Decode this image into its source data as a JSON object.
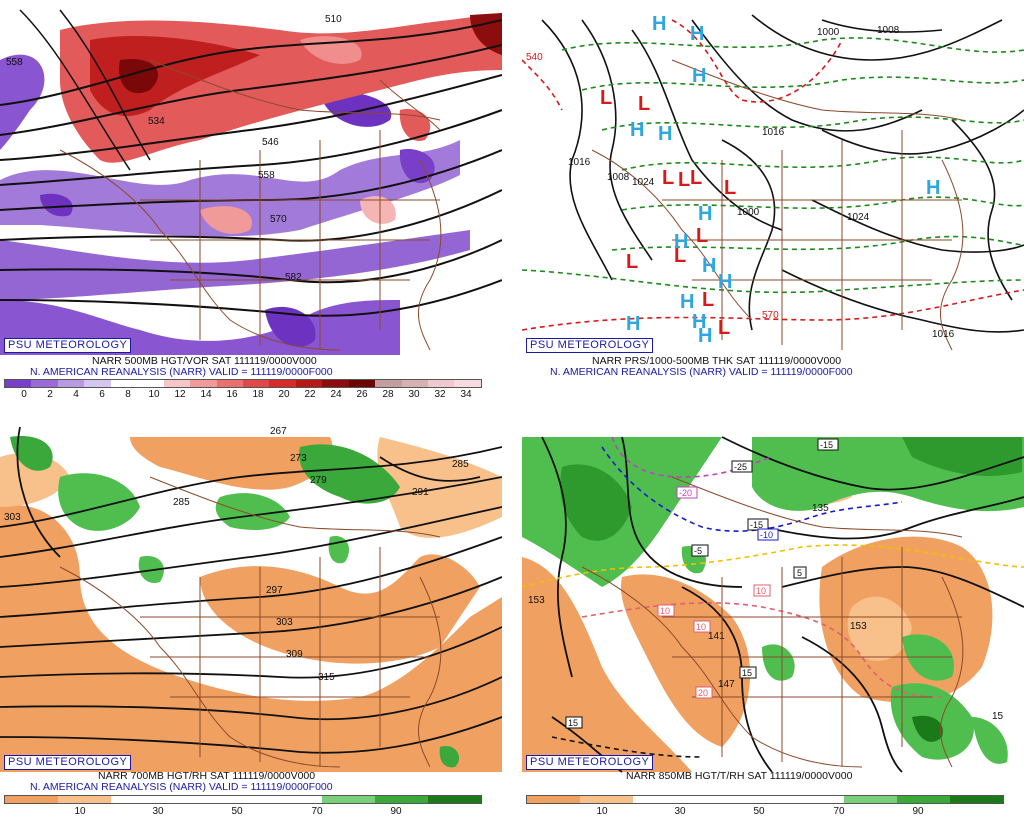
{
  "panels": {
    "p1": {
      "badge": "PSU METEOROLOGY",
      "caption1": "NARR 500MB HGT/VOR SAT 111119/0000V000",
      "caption2": "N. AMERICAN REANALYSIS (NARR) VALID = 111119/0000F000",
      "contour_labels": [
        "510",
        "558",
        "534",
        "546",
        "558",
        "570",
        "582"
      ],
      "colorbar_ticks": [
        "0",
        "2",
        "4",
        "6",
        "8",
        "10",
        "12",
        "14",
        "16",
        "18",
        "20",
        "22",
        "24",
        "26",
        "28",
        "30",
        "32",
        "34"
      ],
      "colors": [
        "#7a3fc9",
        "#9a6ad6",
        "#b89ae0",
        "#d4c6ee",
        "#ffffff",
        "#ffffff",
        "#f7c6c6",
        "#f29a9a",
        "#ec6f6f",
        "#e34848",
        "#d62b2b",
        "#b81818",
        "#8c0d0d",
        "#6a0606",
        "#c2a0a0",
        "#d9b0b0",
        "#efc9cf",
        "#f7dbe0"
      ]
    },
    "p2": {
      "badge": "PSU METEOROLOGY",
      "caption1": "NARR PRS/1000-500MB THK SAT 111119/0000V000",
      "caption2": "N. AMERICAN REANALYSIS (NARR) VALID = 111119/0000F000",
      "pressure_labels": [
        "1000",
        "1008",
        "1016",
        "1024",
        "1008",
        "1016",
        "1000",
        "1024",
        "1016",
        "540",
        "570"
      ],
      "highs": [
        "H",
        "H",
        "H",
        "H",
        "H",
        "H",
        "H",
        "H",
        "H",
        "H",
        "H",
        "H",
        "H",
        "H"
      ],
      "lows": [
        "L",
        "L",
        "L",
        "L",
        "L",
        "L",
        "L",
        "L",
        "L",
        "L",
        "L"
      ]
    },
    "p3": {
      "badge": "PSU METEOROLOGY",
      "caption1": "NARR 700MB HGT/RH SAT 111119/0000V000",
      "caption2": "N. AMERICAN REANALYSIS (NARR) VALID = 111119/0000F000",
      "contour_labels": [
        "267",
        "273",
        "279",
        "285",
        "291",
        "285",
        "303",
        "297",
        "303",
        "309",
        "315"
      ],
      "colorbar_ticks": [
        "10",
        "30",
        "50",
        "70",
        "90"
      ],
      "colors": [
        "#f0a060",
        "#f8c08a",
        "#ffffff",
        "#ffffff",
        "#ffffff",
        "#ffffff",
        "#7ad07a",
        "#3aa83a",
        "#1a7a1a"
      ]
    },
    "p4": {
      "badge": "PSU METEOROLOGY",
      "caption1": "NARR 850MB HGT/T/RH SAT 111119/0000V000",
      "caption2": "",
      "contour_labels": [
        "153",
        "141",
        "147",
        "153",
        "135",
        "15"
      ],
      "temp_boxes": [
        "-15",
        "-25",
        "-20",
        "-15",
        "-10",
        "-5",
        "5",
        "10",
        "10",
        "10",
        "15",
        "20",
        "15"
      ],
      "colorbar_ticks": [
        "10",
        "30",
        "50",
        "70",
        "90"
      ],
      "colors": [
        "#f0a060",
        "#f8c08a",
        "#ffffff",
        "#ffffff",
        "#ffffff",
        "#ffffff",
        "#7ad07a",
        "#3aa83a",
        "#1a7a1a"
      ]
    }
  }
}
